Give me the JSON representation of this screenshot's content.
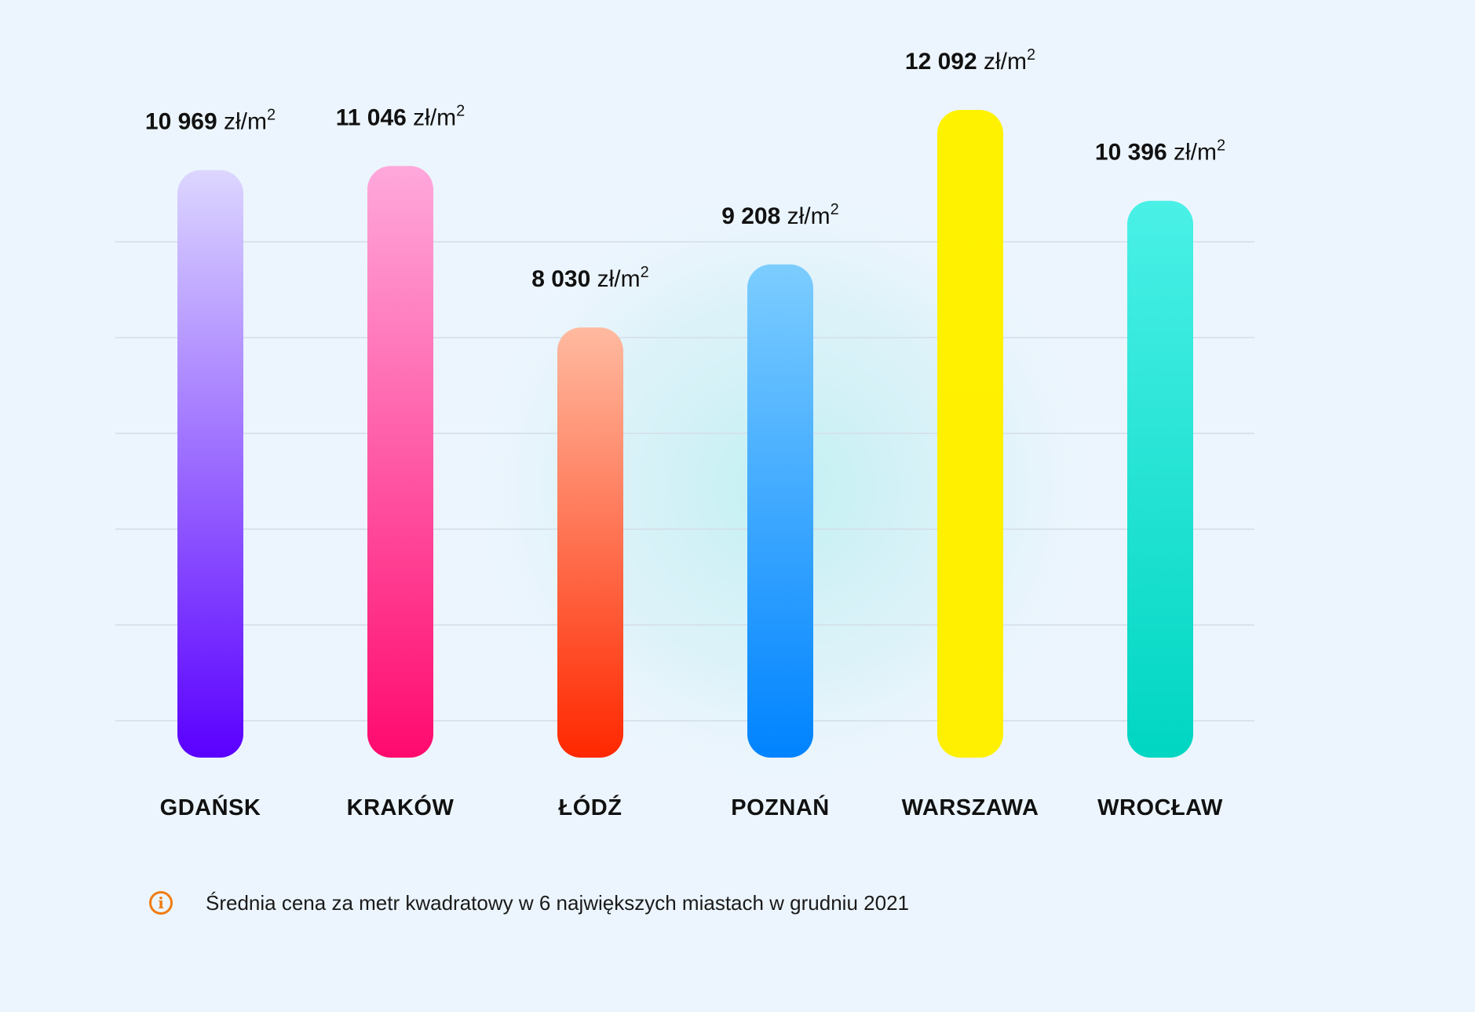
{
  "chart_data": {
    "type": "bar",
    "categories": [
      "GDAŃSK",
      "KRAKÓW",
      "ŁÓDŹ",
      "POZNAŃ",
      "WARSZAWA",
      "WROCŁAW"
    ],
    "values": [
      10969,
      11046,
      8030,
      9208,
      12092,
      10396
    ],
    "value_labels": [
      "10 969",
      "11 046",
      "8 030",
      "9 208",
      "12 092",
      "10 396"
    ],
    "unit": "zł/m",
    "unit_superscript": "2",
    "title": "",
    "xlabel": "",
    "ylabel": "",
    "ylim": [
      0,
      12092
    ],
    "grid": true,
    "colors": [
      {
        "top": "#dcd6ff",
        "bottom": "#5a00ff"
      },
      {
        "top": "#ffa8dc",
        "bottom": "#ff0a6e"
      },
      {
        "top": "#ffbaa0",
        "bottom": "#ff2800"
      },
      {
        "top": "#7ccdff",
        "bottom": "#0083ff"
      },
      {
        "top": "#fff200",
        "bottom": "#ffef00"
      },
      {
        "top": "#4af0e6",
        "bottom": "#00d6c2"
      }
    ]
  },
  "footnote": {
    "icon": "info-icon",
    "icon_glyph": "i",
    "text": "Średnia cena za metr kwadratowy w 6 największych miastach w grudniu 2021"
  }
}
